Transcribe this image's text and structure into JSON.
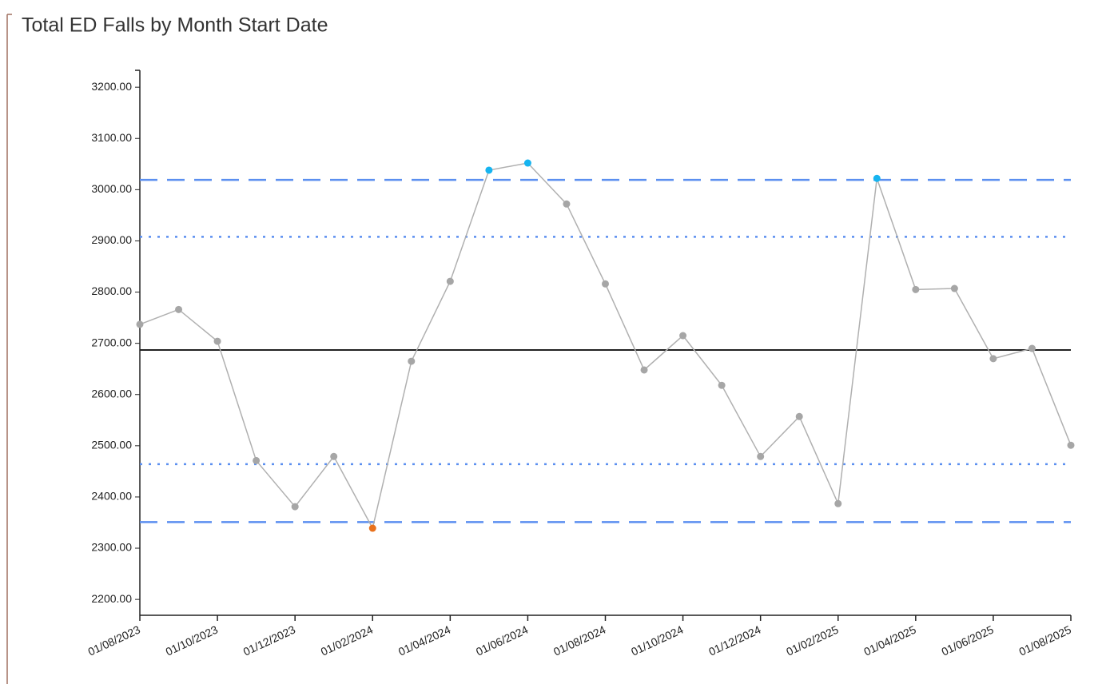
{
  "chart_data": {
    "type": "line",
    "title": "Total ED Falls by Month Start Date",
    "categories": [
      "01/08/2023",
      null,
      "01/10/2023",
      null,
      "01/12/2023",
      null,
      "01/02/2024",
      null,
      "01/04/2024",
      null,
      "01/06/2024",
      null,
      "01/08/2024",
      null,
      "01/10/2024",
      null,
      "01/12/2024",
      null,
      "01/02/2025",
      null,
      "01/04/2025",
      null,
      "01/06/2025",
      null,
      "01/08/2025"
    ],
    "series": [
      {
        "color": "#b0b0b0",
        "values": [
          2737,
          2766,
          2704,
          2471,
          2381,
          2479,
          2339,
          2665,
          2821,
          3038,
          3052,
          2972,
          2816,
          2648,
          2715,
          2618,
          2479,
          2557,
          2387,
          3022,
          2805,
          2807,
          2670,
          2690,
          2501
        ],
        "point_colors": [
          "#a6a6a6",
          "#a6a6a6",
          "#a6a6a6",
          "#a6a6a6",
          "#a6a6a6",
          "#a6a6a6",
          "#e8711c",
          "#a6a6a6",
          "#a6a6a6",
          "#16b4f0",
          "#16b4f0",
          "#a6a6a6",
          "#a6a6a6",
          "#a6a6a6",
          "#a6a6a6",
          "#a6a6a6",
          "#a6a6a6",
          "#a6a6a6",
          "#a6a6a6",
          "#16b4f0",
          "#a6a6a6",
          "#a6a6a6",
          "#a6a6a6",
          "#a6a6a6",
          "#a6a6a6"
        ]
      }
    ],
    "reference_lines": [
      {
        "value": 2687,
        "style": "solid",
        "color": "#222222"
      },
      {
        "value": 3019,
        "style": "dashed",
        "color": "#5b8ff0"
      },
      {
        "value": 2351,
        "style": "dashed",
        "color": "#5b8ff0"
      },
      {
        "value": 2908,
        "style": "dotted",
        "color": "#5b8ff0"
      },
      {
        "value": 2464,
        "style": "dotted",
        "color": "#5b8ff0"
      }
    ],
    "ylim": [
      2169,
      3233
    ],
    "yticks": [
      {
        "value": 2200,
        "label": "2200.00"
      },
      {
        "value": 2300,
        "label": "2300.00"
      },
      {
        "value": 2400,
        "label": "2400.00"
      },
      {
        "value": 2500,
        "label": "2500.00"
      },
      {
        "value": 2600,
        "label": "2600.00"
      },
      {
        "value": 2700,
        "label": "2700.00"
      },
      {
        "value": 2800,
        "label": "2800.00"
      },
      {
        "value": 2900,
        "label": "2900.00"
      },
      {
        "value": 3000,
        "label": "3000.00"
      },
      {
        "value": 3100,
        "label": "3100.00"
      },
      {
        "value": 3200,
        "label": "3200.00"
      }
    ],
    "grid": false
  }
}
